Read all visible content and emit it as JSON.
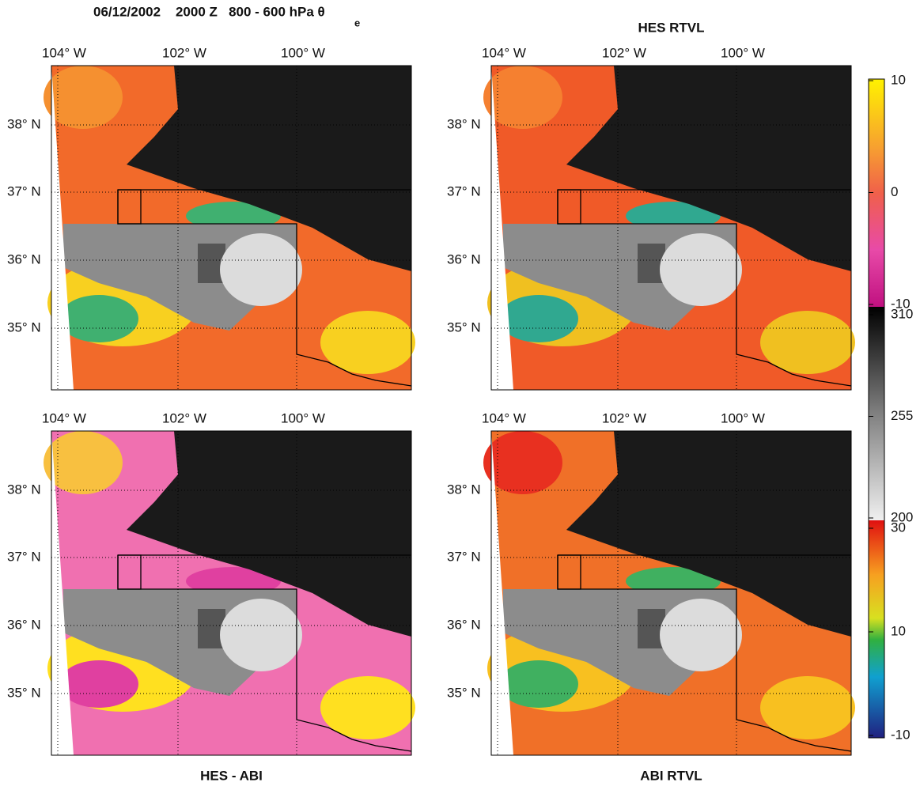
{
  "title": "06/12/2002    2000 Z   800 - 600 hPa θ",
  "title_subscript": "e",
  "panels": [
    {
      "title": null
    },
    {
      "title": "HES RTVL"
    },
    {
      "title": "HES - ABI"
    },
    {
      "title": "ABI RTVL"
    }
  ],
  "lon_labels": [
    "104° W",
    "102° W",
    "100° W"
  ],
  "lat_labels": [
    "38° N",
    "37° N",
    "36° N",
    "35° N"
  ],
  "colorbar": [
    {
      "labels": [
        10,
        0,
        -10
      ]
    },
    {
      "labels": [
        310,
        255,
        200
      ]
    },
    {
      "labels": [
        30,
        10,
        -10
      ]
    }
  ]
}
